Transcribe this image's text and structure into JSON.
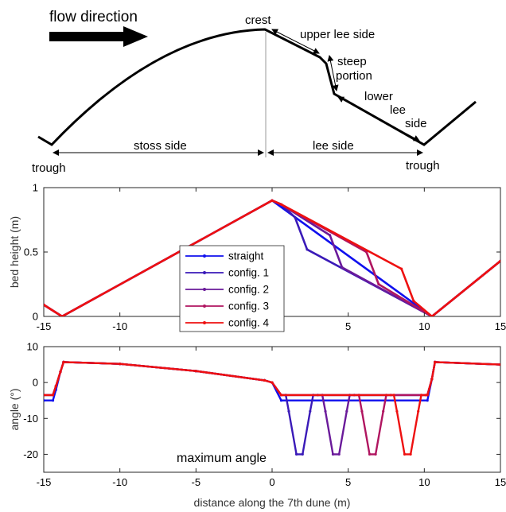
{
  "schematic": {
    "flow_label": "flow direction",
    "crest": "crest",
    "upper_lee": "upper lee side",
    "steep1": "steep",
    "steep2": "portion",
    "lower1": "lower",
    "lower2": "lee",
    "lower3": "side",
    "stoss": "stoss side",
    "lee": "lee side",
    "trough_left": "trough",
    "trough_right": "trough"
  },
  "chart_data": [
    {
      "type": "line",
      "title": "",
      "xlabel": "",
      "ylabel": "bed height (m)",
      "xlim": [
        -15,
        15
      ],
      "ylim": [
        0,
        1
      ],
      "xticks": [
        -15,
        -10,
        -5,
        0,
        5,
        10,
        15
      ],
      "yticks": [
        0,
        0.5,
        1
      ],
      "legend_position": "inside-center",
      "series": [
        {
          "name": "straight",
          "color": "#1010ee",
          "x": [
            -15,
            -13.8,
            0,
            10.5,
            15
          ],
          "y": [
            0.09,
            0,
            0.9,
            0,
            0.43
          ]
        },
        {
          "name": "config. 1",
          "color": "#3a1ab8",
          "x": [
            -15,
            -13.8,
            0,
            0.6,
            1.5,
            2.3,
            10.5,
            15
          ],
          "y": [
            0.09,
            0,
            0.9,
            0.87,
            0.77,
            0.52,
            0,
            0.43
          ]
        },
        {
          "name": "config. 2",
          "color": "#6a1a9a",
          "x": [
            -15,
            -13.8,
            0,
            0.6,
            3.8,
            4.6,
            10.5,
            15
          ],
          "y": [
            0.09,
            0,
            0.9,
            0.87,
            0.63,
            0.38,
            0,
            0.43
          ]
        },
        {
          "name": "config. 3",
          "color": "#b01560",
          "x": [
            -15,
            -13.8,
            0,
            0.6,
            6.2,
            7.0,
            10.5,
            15
          ],
          "y": [
            0.09,
            0,
            0.9,
            0.87,
            0.5,
            0.25,
            0,
            0.43
          ]
        },
        {
          "name": "config. 4",
          "color": "#ee1010",
          "x": [
            -15,
            -13.8,
            0,
            0.6,
            8.5,
            9.3,
            10.5,
            15
          ],
          "y": [
            0.09,
            0,
            0.9,
            0.87,
            0.37,
            0.12,
            0,
            0.43
          ]
        }
      ]
    },
    {
      "type": "line",
      "title": "",
      "xlabel": "distance along the 7th dune (m)",
      "ylabel": "angle (°)",
      "xlim": [
        -15,
        15
      ],
      "ylim": [
        -25,
        10
      ],
      "xticks": [
        -15,
        -10,
        -5,
        0,
        5,
        10,
        15
      ],
      "yticks": [
        -20,
        -10,
        0,
        10
      ],
      "annotation": "maximum angle",
      "series": [
        {
          "name": "straight",
          "color": "#1010ee",
          "x": [
            -15,
            -14.4,
            -14.2,
            -13.9,
            -13.7,
            -10,
            -5,
            -0.5,
            0,
            0.6,
            10.2,
            10.5,
            10.7,
            15
          ],
          "y": [
            -5,
            -5,
            -2,
            3,
            5.7,
            5.2,
            3.2,
            0.6,
            0,
            -5,
            -5,
            1,
            5.7,
            5
          ]
        },
        {
          "name": "config. 1",
          "color": "#3a1ab8",
          "x": [
            -15,
            -14.4,
            -14.2,
            -13.9,
            -13.7,
            -10,
            -5,
            -0.5,
            0,
            0.6,
            0.9,
            1.1,
            1.6,
            2.0,
            2.5,
            2.7,
            3.0,
            10.2,
            10.5,
            10.7,
            15
          ],
          "y": [
            -3.5,
            -3.5,
            -1,
            3,
            5.7,
            5.2,
            3.2,
            0.6,
            0,
            -3.5,
            -3.5,
            -8,
            -20,
            -20,
            -8,
            -3.5,
            -3.5,
            -3.5,
            1,
            5.7,
            5
          ]
        },
        {
          "name": "config. 2",
          "color": "#6a1a9a",
          "x": [
            -15,
            -14.4,
            -14.2,
            -13.9,
            -13.7,
            -10,
            -5,
            -0.5,
            0,
            0.6,
            3.3,
            3.5,
            4.0,
            4.4,
            4.9,
            5.1,
            5.4,
            10.2,
            10.5,
            10.7,
            15
          ],
          "y": [
            -3.5,
            -3.5,
            -1,
            3,
            5.7,
            5.2,
            3.2,
            0.6,
            0,
            -3.5,
            -3.5,
            -8,
            -20,
            -20,
            -8,
            -3.5,
            -3.5,
            -3.5,
            1,
            5.7,
            5
          ]
        },
        {
          "name": "config. 3",
          "color": "#b01560",
          "x": [
            -15,
            -14.4,
            -14.2,
            -13.9,
            -13.7,
            -10,
            -5,
            -0.5,
            0,
            0.6,
            5.7,
            5.9,
            6.4,
            6.8,
            7.3,
            7.5,
            7.8,
            10.2,
            10.5,
            10.7,
            15
          ],
          "y": [
            -3.5,
            -3.5,
            -1,
            3,
            5.7,
            5.2,
            3.2,
            0.6,
            0,
            -3.5,
            -3.5,
            -8,
            -20,
            -20,
            -8,
            -3.5,
            -3.5,
            -3.5,
            1,
            5.7,
            5
          ]
        },
        {
          "name": "config. 4",
          "color": "#ee1010",
          "x": [
            -15,
            -14.4,
            -14.2,
            -13.9,
            -13.7,
            -10,
            -5,
            -0.5,
            0,
            0.6,
            8.0,
            8.2,
            8.7,
            9.1,
            9.6,
            9.8,
            10.1,
            10.2,
            10.5,
            10.7,
            15
          ],
          "y": [
            -3.5,
            -3.5,
            -1,
            3,
            5.7,
            5.2,
            3.2,
            0.6,
            0,
            -3.5,
            -3.5,
            -8,
            -20,
            -20,
            -8,
            -3.5,
            -3.5,
            -3.5,
            1,
            5.7,
            5
          ]
        }
      ]
    }
  ]
}
